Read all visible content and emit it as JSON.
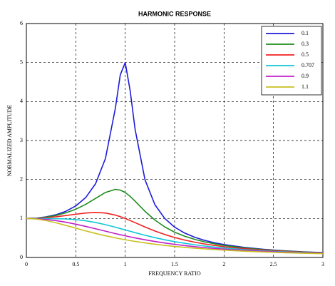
{
  "chart_data": {
    "type": "line",
    "title": "HARMONIC RESPONSE",
    "x_label": "FREQUENCY RATIO",
    "y_label": "NORMALIZED AMPLITUDE",
    "x": [
      0,
      0.1,
      0.2,
      0.3,
      0.4,
      0.5,
      0.6,
      0.7,
      0.8,
      0.9,
      0.95,
      1.0,
      1.05,
      1.1,
      1.2,
      1.3,
      1.4,
      1.5,
      1.6,
      1.7,
      1.8,
      1.9,
      2.0,
      2.2,
      2.4,
      2.6,
      2.8,
      3.0
    ],
    "series": [
      {
        "name": "0.1",
        "color": "#1c1cd8",
        "values": [
          1,
          1.01,
          1.041,
          1.096,
          1.185,
          1.322,
          1.536,
          1.891,
          2.538,
          3.821,
          4.682,
          5.0,
          4.279,
          3.288,
          1.995,
          1.356,
          1.0,
          0.778,
          0.628,
          0.521,
          0.441,
          0.379,
          0.33,
          0.259,
          0.209,
          0.173,
          0.146,
          0.125
        ]
      },
      {
        "name": "0.3",
        "color": "#1e8c1e",
        "values": [
          1,
          1.008,
          1.034,
          1.078,
          1.145,
          1.238,
          1.362,
          1.514,
          1.667,
          1.747,
          1.729,
          1.667,
          1.567,
          1.444,
          1.185,
          0.96,
          0.784,
          0.649,
          0.546,
          0.466,
          0.402,
          0.351,
          0.309,
          0.246,
          0.201,
          0.168,
          0.142,
          0.122
        ]
      },
      {
        "name": "0.5",
        "color": "#f02020",
        "values": [
          1,
          1.005,
          1.02,
          1.044,
          1.075,
          1.109,
          1.14,
          1.155,
          1.14,
          1.087,
          1.047,
          1.0,
          0.948,
          0.893,
          0.782,
          0.679,
          0.589,
          0.512,
          0.448,
          0.393,
          0.348,
          0.31,
          0.277,
          0.226,
          0.188,
          0.158,
          0.135,
          0.117
        ]
      },
      {
        "name": "0.707",
        "color": "#10c8d8",
        "values": [
          1,
          1.0,
          0.999,
          0.996,
          0.988,
          0.97,
          0.941,
          0.898,
          0.842,
          0.777,
          0.742,
          0.707,
          0.672,
          0.637,
          0.57,
          0.509,
          0.454,
          0.406,
          0.364,
          0.327,
          0.295,
          0.267,
          0.243,
          0.202,
          0.171,
          0.146,
          0.127,
          0.11
        ]
      },
      {
        "name": "0.9",
        "color": "#c020c8",
        "values": [
          1,
          0.994,
          0.975,
          0.945,
          0.904,
          0.854,
          0.797,
          0.736,
          0.674,
          0.613,
          0.584,
          0.556,
          0.528,
          0.502,
          0.454,
          0.41,
          0.371,
          0.336,
          0.305,
          0.278,
          0.254,
          0.232,
          0.213,
          0.181,
          0.156,
          0.135,
          0.118,
          0.104
        ]
      },
      {
        "name": "1.1",
        "color": "#c8c020",
        "values": [
          1,
          0.986,
          0.947,
          0.89,
          0.822,
          0.751,
          0.682,
          0.616,
          0.557,
          0.503,
          0.478,
          0.455,
          0.432,
          0.412,
          0.374,
          0.34,
          0.31,
          0.283,
          0.26,
          0.239,
          0.22,
          0.203,
          0.188,
          0.162,
          0.141,
          0.123,
          0.109,
          0.096
        ]
      }
    ],
    "xlim": [
      0,
      3
    ],
    "ylim": [
      0,
      6
    ],
    "xticks": [
      0,
      0.5,
      1,
      1.5,
      2,
      2.5,
      3
    ],
    "yticks": [
      0,
      1,
      2,
      3,
      4,
      5,
      6
    ],
    "grid": true,
    "legend": "upper right"
  }
}
